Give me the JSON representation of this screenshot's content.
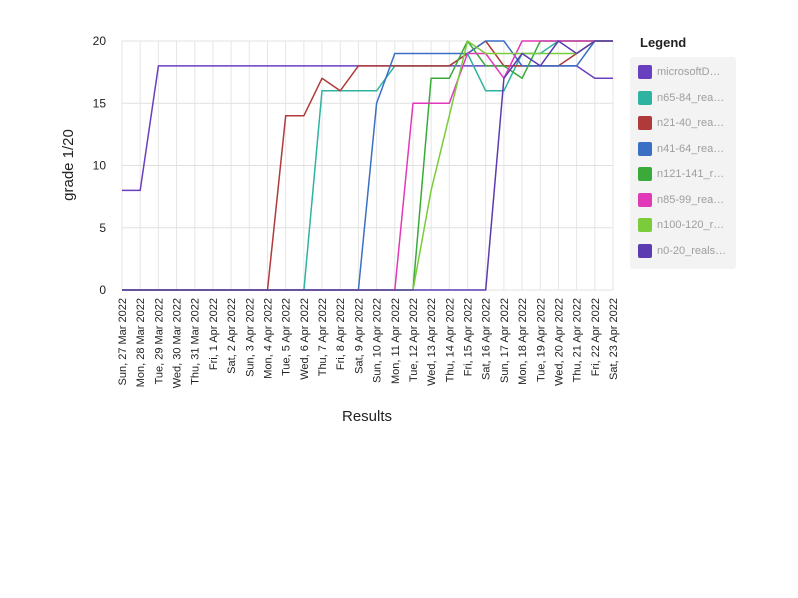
{
  "chart_data": {
    "type": "line",
    "xlabel": "Results",
    "ylabel": "grade 1/20",
    "ylim": [
      0,
      20
    ],
    "yticks": [
      "0",
      "5",
      "10",
      "15",
      "20"
    ],
    "grid": true,
    "legend_position": "right",
    "legend_title": "Legend",
    "categories": [
      "Sun, 27 Mar 2022",
      "Mon, 28 Mar 2022",
      "Tue, 29 Mar 2022",
      "Wed, 30 Mar 2022",
      "Thu, 31 Mar 2022",
      "Fri, 1 Apr 2022",
      "Sat, 2 Apr 2022",
      "Sun, 3 Apr 2022",
      "Mon, 4 Apr 2022",
      "Tue, 5 Apr 2022",
      "Wed, 6 Apr 2022",
      "Thu, 7 Apr 2022",
      "Fri, 8 Apr 2022",
      "Sat, 9 Apr 2022",
      "Sun, 10 Apr 2022",
      "Mon, 11 Apr 2022",
      "Tue, 12 Apr 2022",
      "Wed, 13 Apr 2022",
      "Thu, 14 Apr 2022",
      "Fri, 15 Apr 2022",
      "Sat, 16 Apr 2022",
      "Sun, 17 Apr 2022",
      "Mon, 18 Apr 2022",
      "Tue, 19 Apr 2022",
      "Wed, 20 Apr 2022",
      "Thu, 21 Apr 2022",
      "Fri, 22 Apr 2022",
      "Sat, 23 Apr 2022"
    ],
    "series": [
      {
        "name": "microsoftD…",
        "color": "#6a3fbf",
        "values": [
          8,
          8,
          18,
          18,
          18,
          18,
          18,
          18,
          18,
          18,
          18,
          18,
          18,
          18,
          18,
          18,
          18,
          18,
          18,
          18,
          18,
          18,
          18,
          18,
          18,
          18,
          17,
          17
        ]
      },
      {
        "name": "n65-84_rea…",
        "color": "#2fb3a1",
        "values": [
          0,
          0,
          0,
          0,
          0,
          0,
          0,
          0,
          0,
          0,
          0,
          16,
          16,
          16,
          16,
          18,
          18,
          18,
          18,
          19,
          16,
          16,
          19,
          19,
          20,
          20,
          20,
          20
        ]
      },
      {
        "name": "n21-40_rea…",
        "color": "#b03a3a",
        "values": [
          0,
          0,
          0,
          0,
          0,
          0,
          0,
          0,
          0,
          14,
          14,
          17,
          16,
          18,
          18,
          18,
          18,
          18,
          18,
          19,
          20,
          18,
          18,
          18,
          18,
          19,
          20,
          20
        ]
      },
      {
        "name": "n41-64_rea…",
        "color": "#3a6fc4",
        "values": [
          0,
          0,
          0,
          0,
          0,
          0,
          0,
          0,
          0,
          0,
          0,
          0,
          0,
          0,
          15,
          19,
          19,
          19,
          19,
          19,
          20,
          20,
          18,
          18,
          18,
          18,
          20,
          20
        ]
      },
      {
        "name": "n121-141_r…",
        "color": "#3aaa3a",
        "values": [
          0,
          0,
          0,
          0,
          0,
          0,
          0,
          0,
          0,
          0,
          0,
          0,
          0,
          0,
          0,
          0,
          0,
          17,
          17,
          20,
          18,
          18,
          17,
          20,
          20,
          20,
          20,
          20
        ]
      },
      {
        "name": "n85-99_rea…",
        "color": "#e03ab8",
        "values": [
          0,
          0,
          0,
          0,
          0,
          0,
          0,
          0,
          0,
          0,
          0,
          0,
          0,
          0,
          0,
          0,
          15,
          15,
          15,
          19,
          19,
          17,
          20,
          20,
          20,
          20,
          20,
          20
        ]
      },
      {
        "name": "n100-120_r…",
        "color": "#7acc3a",
        "values": [
          0,
          0,
          0,
          0,
          0,
          0,
          0,
          0,
          0,
          0,
          0,
          0,
          0,
          0,
          0,
          0,
          0,
          8,
          14,
          20,
          19,
          19,
          19,
          19,
          19,
          19,
          20,
          20
        ]
      },
      {
        "name": "n0-20_reals…",
        "color": "#5c3bb0",
        "values": [
          0,
          0,
          0,
          0,
          0,
          0,
          0,
          0,
          0,
          0,
          0,
          0,
          0,
          0,
          0,
          0,
          0,
          0,
          0,
          0,
          0,
          17,
          19,
          18,
          20,
          19,
          20,
          20
        ]
      }
    ]
  }
}
